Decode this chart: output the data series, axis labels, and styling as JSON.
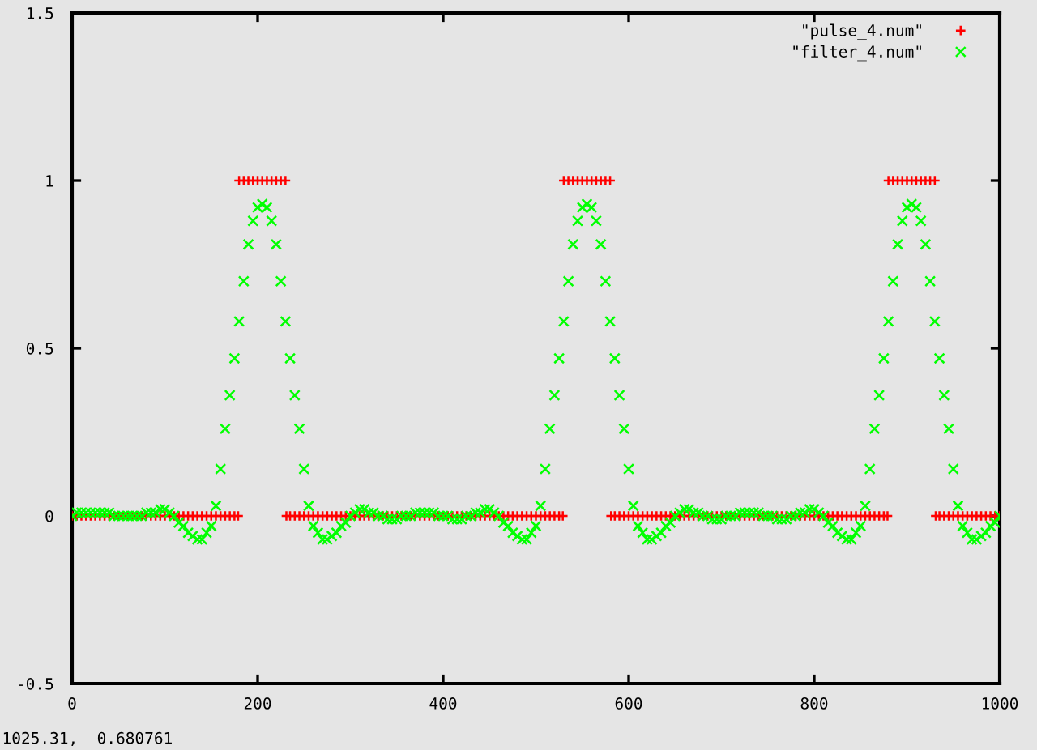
{
  "chart_data": {
    "type": "scatter",
    "xlim": [
      0,
      1000
    ],
    "ylim": [
      -0.5,
      1.5
    ],
    "xticks": [
      0,
      200,
      400,
      600,
      800,
      1000
    ],
    "yticks": [
      -0.5,
      0,
      0.5,
      1,
      1.5
    ],
    "legend": "top right",
    "annotations": [
      "1025.31,  0.680761"
    ],
    "series": [
      {
        "name": "\"pulse_4.num\"",
        "color": "#ff0000",
        "marker": "cross",
        "x": [
          0,
          5,
          10,
          15,
          20,
          25,
          30,
          35,
          40,
          45,
          50,
          55,
          60,
          65,
          70,
          75,
          80,
          85,
          90,
          95,
          100,
          105,
          110,
          115,
          120,
          125,
          130,
          135,
          140,
          145,
          150,
          155,
          160,
          165,
          170,
          175,
          179,
          180,
          185,
          190,
          195,
          200,
          205,
          210,
          215,
          220,
          225,
          230,
          231,
          235,
          240,
          245,
          250,
          255,
          260,
          265,
          270,
          275,
          280,
          285,
          290,
          295,
          300,
          305,
          310,
          315,
          320,
          325,
          330,
          335,
          340,
          345,
          350,
          355,
          360,
          365,
          370,
          375,
          380,
          385,
          390,
          395,
          400,
          405,
          410,
          415,
          420,
          425,
          430,
          435,
          440,
          445,
          450,
          455,
          460,
          465,
          470,
          475,
          480,
          485,
          490,
          495,
          500,
          505,
          510,
          515,
          520,
          525,
          529,
          530,
          535,
          540,
          545,
          550,
          555,
          560,
          565,
          570,
          575,
          580,
          581,
          585,
          590,
          595,
          600,
          605,
          610,
          615,
          620,
          625,
          630,
          635,
          640,
          645,
          650,
          655,
          660,
          665,
          670,
          675,
          680,
          685,
          690,
          695,
          700,
          705,
          710,
          715,
          720,
          725,
          730,
          735,
          740,
          745,
          750,
          755,
          760,
          765,
          770,
          775,
          780,
          785,
          790,
          795,
          800,
          805,
          810,
          815,
          820,
          825,
          830,
          835,
          840,
          845,
          850,
          855,
          860,
          865,
          870,
          875,
          879,
          880,
          885,
          890,
          895,
          900,
          905,
          910,
          915,
          920,
          925,
          930,
          931,
          935,
          940,
          945,
          950,
          955,
          960,
          965,
          970,
          975,
          980,
          985,
          990,
          995,
          1000
        ],
        "values": [
          0,
          0,
          0,
          0,
          0,
          0,
          0,
          0,
          0,
          0,
          0,
          0,
          0,
          0,
          0,
          0,
          0,
          0,
          0,
          0,
          0,
          0,
          0,
          0,
          0,
          0,
          0,
          0,
          0,
          0,
          0,
          0,
          0,
          0,
          0,
          0,
          0,
          1,
          1,
          1,
          1,
          1,
          1,
          1,
          1,
          1,
          1,
          1,
          0,
          0,
          0,
          0,
          0,
          0,
          0,
          0,
          0,
          0,
          0,
          0,
          0,
          0,
          0,
          0,
          0,
          0,
          0,
          0,
          0,
          0,
          0,
          0,
          0,
          0,
          0,
          0,
          0,
          0,
          0,
          0,
          0,
          0,
          0,
          0,
          0,
          0,
          0,
          0,
          0,
          0,
          0,
          0,
          0,
          0,
          0,
          0,
          0,
          0,
          0,
          0,
          0,
          0,
          0,
          0,
          0,
          0,
          0,
          0,
          0,
          1,
          1,
          1,
          1,
          1,
          1,
          1,
          1,
          1,
          1,
          1,
          0,
          0,
          0,
          0,
          0,
          0,
          0,
          0,
          0,
          0,
          0,
          0,
          0,
          0,
          0,
          0,
          0,
          0,
          0,
          0,
          0,
          0,
          0,
          0,
          0,
          0,
          0,
          0,
          0,
          0,
          0,
          0,
          0,
          0,
          0,
          0,
          0,
          0,
          0,
          0,
          0,
          0,
          0,
          0,
          0,
          0,
          0,
          0,
          0,
          0,
          0,
          0,
          0,
          0,
          0,
          0,
          0,
          0,
          0,
          0,
          0,
          1,
          1,
          1,
          1,
          1,
          1,
          1,
          1,
          1,
          1,
          1,
          0,
          0,
          0,
          0,
          0,
          0,
          0,
          0,
          0,
          0,
          0,
          0,
          0,
          0,
          0
        ]
      },
      {
        "name": "\"filter_4.num\"",
        "color": "#00ff00",
        "marker": "x",
        "x": [
          0,
          5,
          10,
          15,
          20,
          25,
          30,
          35,
          40,
          45,
          50,
          55,
          60,
          65,
          70,
          75,
          80,
          85,
          90,
          95,
          100,
          105,
          110,
          115,
          120,
          125,
          130,
          135,
          140,
          145,
          150,
          155,
          160,
          165,
          170,
          175,
          180,
          185,
          190,
          195,
          200,
          205,
          210,
          215,
          220,
          225,
          230,
          235,
          240,
          245,
          250,
          255,
          260,
          265,
          270,
          275,
          280,
          285,
          290,
          295,
          300,
          305,
          310,
          315,
          320,
          325,
          330,
          335,
          340,
          345,
          350,
          355,
          360,
          365,
          370,
          375,
          380,
          385,
          390,
          395,
          400,
          405,
          410,
          415,
          420,
          425,
          430,
          435,
          440,
          445,
          450,
          455,
          460,
          465,
          470,
          475,
          480,
          485,
          490,
          495,
          500,
          505,
          510,
          515,
          520,
          525,
          530,
          535,
          540,
          545,
          550,
          555,
          560,
          565,
          570,
          575,
          580,
          585,
          590,
          595,
          600,
          605,
          610,
          615,
          620,
          625,
          630,
          635,
          640,
          645,
          650,
          655,
          660,
          665,
          670,
          675,
          680,
          685,
          690,
          695,
          700,
          705,
          710,
          715,
          720,
          725,
          730,
          735,
          740,
          745,
          750,
          755,
          760,
          765,
          770,
          775,
          780,
          785,
          790,
          795,
          800,
          805,
          810,
          815,
          820,
          825,
          830,
          835,
          840,
          845,
          850,
          855,
          860,
          865,
          870,
          875,
          880,
          885,
          890,
          895,
          900,
          905,
          910,
          915,
          920,
          925,
          930,
          935,
          940,
          945,
          950,
          955,
          960,
          965,
          970,
          975,
          980,
          985,
          990,
          995,
          1000
        ],
        "values": [
          0,
          0.01,
          0.01,
          0.01,
          0.01,
          0.01,
          0.01,
          0.01,
          0.01,
          0,
          0,
          0,
          0,
          0,
          0,
          0,
          0.01,
          0.01,
          0.01,
          0.02,
          0.02,
          0.01,
          0,
          -0.02,
          -0.03,
          -0.05,
          -0.06,
          -0.07,
          -0.07,
          -0.05,
          -0.03,
          0.03,
          0.14,
          0.26,
          0.36,
          0.47,
          0.58,
          0.7,
          0.81,
          0.88,
          0.92,
          0.93,
          0.92,
          0.88,
          0.81,
          0.7,
          0.58,
          0.47,
          0.36,
          0.26,
          0.14,
          0.03,
          -0.03,
          -0.05,
          -0.07,
          -0.07,
          -0.06,
          -0.05,
          -0.03,
          -0.02,
          0,
          0.01,
          0.02,
          0.02,
          0.01,
          0.01,
          0,
          0,
          -0.01,
          -0.01,
          -0.01,
          0,
          0,
          0,
          0.01,
          0.01,
          0.01,
          0.01,
          0.01,
          0,
          0,
          0,
          -0.01,
          -0.01,
          -0.01,
          0,
          0,
          0.01,
          0.01,
          0.02,
          0.02,
          0.01,
          0,
          -0.02,
          -0.03,
          -0.05,
          -0.06,
          -0.07,
          -0.07,
          -0.05,
          -0.03,
          0.03,
          0.14,
          0.26,
          0.36,
          0.47,
          0.58,
          0.7,
          0.81,
          0.88,
          0.92,
          0.93,
          0.92,
          0.88,
          0.81,
          0.7,
          0.58,
          0.47,
          0.36,
          0.26,
          0.14,
          0.03,
          -0.03,
          -0.05,
          -0.07,
          -0.07,
          -0.06,
          -0.05,
          -0.03,
          -0.02,
          0,
          0.01,
          0.02,
          0.02,
          0.01,
          0.01,
          0,
          0,
          -0.01,
          -0.01,
          -0.01,
          0,
          0,
          0,
          0.01,
          0.01,
          0.01,
          0.01,
          0.01,
          0,
          0,
          0,
          -0.01,
          -0.01,
          -0.01,
          0,
          0,
          0.01,
          0.01,
          0.02,
          0.02,
          0.01,
          0,
          -0.02,
          -0.03,
          -0.05,
          -0.06,
          -0.07,
          -0.07,
          -0.05,
          -0.03,
          0.03,
          0.14,
          0.26,
          0.36,
          0.47,
          0.58,
          0.7,
          0.81,
          0.88,
          0.92,
          0.93,
          0.92,
          0.88,
          0.81,
          0.7,
          0.58,
          0.47,
          0.36,
          0.26,
          0.14,
          0.03,
          -0.03,
          -0.05,
          -0.07,
          -0.07,
          -0.06,
          -0.05,
          -0.03,
          -0.02,
          0
        ]
      }
    ]
  }
}
